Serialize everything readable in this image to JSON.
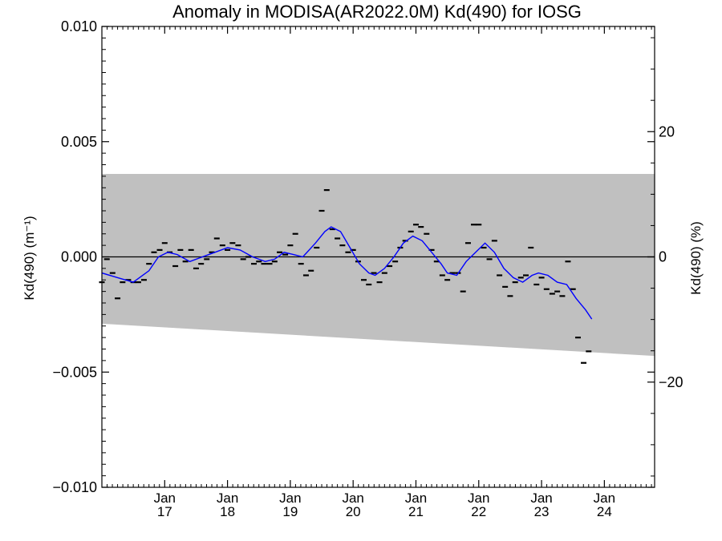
{
  "chart_data": {
    "type": "scatter",
    "title": "Anomaly in MODISA(AR2022.0M) Kd(490) for IOSG",
    "ylabel": "Kd(490) (m⁻¹)",
    "y2label": "Kd(490) (%)",
    "xlim": [
      2016.0,
      2024.8
    ],
    "ylim": [
      -0.01,
      0.01
    ],
    "y2lim": [
      -36.8,
      36.8
    ],
    "yticks": [
      "0.010",
      "0.005",
      "0.000",
      "−0.005",
      "−0.010"
    ],
    "yticks_values": [
      0.01,
      0.005,
      0.0,
      -0.005,
      -0.01
    ],
    "y2ticks": [
      "20",
      "0",
      "−20"
    ],
    "y2ticks_values": [
      20,
      0,
      -20
    ],
    "xticks": [
      {
        "month": "Jan",
        "year": "17",
        "x": 2017.0
      },
      {
        "month": "Jan",
        "year": "18",
        "x": 2018.0
      },
      {
        "month": "Jan",
        "year": "19",
        "x": 2019.0
      },
      {
        "month": "Jan",
        "year": "20",
        "x": 2020.0
      },
      {
        "month": "Jan",
        "year": "21",
        "x": 2021.0
      },
      {
        "month": "Jan",
        "year": "22",
        "x": 2022.0
      },
      {
        "month": "Jan",
        "year": "23",
        "x": 2023.0
      },
      {
        "month": "Jan",
        "year": "24",
        "x": 2024.0
      }
    ],
    "band": {
      "color": "#c0c0c0",
      "upper": [
        [
          2016.0,
          0.0036
        ],
        [
          2024.8,
          0.0036
        ]
      ],
      "lower": [
        [
          2016.0,
          -0.0029
        ],
        [
          2024.8,
          -0.0043
        ]
      ]
    },
    "zero_line": 0.0,
    "series": [
      {
        "role": "monthly-anomaly",
        "marker": "dash",
        "color": "#000000",
        "points": [
          [
            2016.0,
            -0.0011
          ],
          [
            2016.08,
            -0.0001
          ],
          [
            2016.17,
            -0.0007
          ],
          [
            2016.25,
            -0.0018
          ],
          [
            2016.33,
            -0.0011
          ],
          [
            2016.42,
            -0.001
          ],
          [
            2016.5,
            -0.0011
          ],
          [
            2016.58,
            -0.0011
          ],
          [
            2016.67,
            -0.001
          ],
          [
            2016.75,
            -0.0003
          ],
          [
            2016.83,
            0.0002
          ],
          [
            2016.92,
            0.0003
          ],
          [
            2017.0,
            0.0006
          ],
          [
            2017.08,
            0.0002
          ],
          [
            2017.17,
            -0.0004
          ],
          [
            2017.25,
            0.0003
          ],
          [
            2017.33,
            -0.0002
          ],
          [
            2017.42,
            0.0003
          ],
          [
            2017.5,
            -0.0005
          ],
          [
            2017.58,
            -0.0003
          ],
          [
            2017.67,
            -0.0001
          ],
          [
            2017.75,
            0.0002
          ],
          [
            2017.83,
            0.0008
          ],
          [
            2017.92,
            0.0005
          ],
          [
            2018.0,
            0.0003
          ],
          [
            2018.08,
            0.0006
          ],
          [
            2018.17,
            0.0005
          ],
          [
            2018.25,
            -0.0001
          ],
          [
            2018.33,
            0.0
          ],
          [
            2018.42,
            -0.0003
          ],
          [
            2018.5,
            -0.0002
          ],
          [
            2018.58,
            -0.0003
          ],
          [
            2018.67,
            -0.0003
          ],
          [
            2018.75,
            -0.0002
          ],
          [
            2018.83,
            0.0002
          ],
          [
            2018.92,
            0.0001
          ],
          [
            2019.0,
            0.0005
          ],
          [
            2019.08,
            0.001
          ],
          [
            2019.17,
            -0.0003
          ],
          [
            2019.25,
            -0.0008
          ],
          [
            2019.33,
            -0.0006
          ],
          [
            2019.42,
            0.0004
          ],
          [
            2019.5,
            0.002
          ],
          [
            2019.58,
            0.0029
          ],
          [
            2019.67,
            0.0012
          ],
          [
            2019.75,
            0.0008
          ],
          [
            2019.83,
            0.0005
          ],
          [
            2019.92,
            0.0002
          ],
          [
            2020.0,
            0.0003
          ],
          [
            2020.08,
            -0.0002
          ],
          [
            2020.17,
            -0.001
          ],
          [
            2020.25,
            -0.0012
          ],
          [
            2020.33,
            -0.0007
          ],
          [
            2020.42,
            -0.0011
          ],
          [
            2020.5,
            -0.0007
          ],
          [
            2020.58,
            -0.0004
          ],
          [
            2020.67,
            -0.0002
          ],
          [
            2020.75,
            0.0004
          ],
          [
            2020.83,
            0.0007
          ],
          [
            2020.92,
            0.0011
          ],
          [
            2021.0,
            0.0014
          ],
          [
            2021.08,
            0.0013
          ],
          [
            2021.17,
            0.001
          ],
          [
            2021.25,
            0.0003
          ],
          [
            2021.33,
            -0.0002
          ],
          [
            2021.42,
            -0.0008
          ],
          [
            2021.5,
            -0.001
          ],
          [
            2021.58,
            -0.0007
          ],
          [
            2021.67,
            -0.0007
          ],
          [
            2021.75,
            -0.0015
          ],
          [
            2021.83,
            0.0006
          ],
          [
            2021.92,
            0.0014
          ],
          [
            2022.0,
            0.0014
          ],
          [
            2022.08,
            0.0004
          ],
          [
            2022.17,
            -0.0001
          ],
          [
            2022.25,
            0.0007
          ],
          [
            2022.33,
            -0.0008
          ],
          [
            2022.42,
            -0.0013
          ],
          [
            2022.5,
            -0.0017
          ],
          [
            2022.58,
            -0.0011
          ],
          [
            2022.67,
            -0.0009
          ],
          [
            2022.75,
            -0.0008
          ],
          [
            2022.83,
            0.0004
          ],
          [
            2022.92,
            -0.0012
          ],
          [
            2023.0,
            -0.0009
          ],
          [
            2023.08,
            -0.0014
          ],
          [
            2023.17,
            -0.0016
          ],
          [
            2023.25,
            -0.0015
          ],
          [
            2023.33,
            -0.0017
          ],
          [
            2023.42,
            -0.0002
          ],
          [
            2023.5,
            -0.0014
          ],
          [
            2023.58,
            -0.0035
          ],
          [
            2023.67,
            -0.0046
          ],
          [
            2023.75,
            -0.0041
          ]
        ]
      },
      {
        "role": "running-mean",
        "marker": "line",
        "color": "#0000ff",
        "points": [
          [
            2016.0,
            -0.0007
          ],
          [
            2016.25,
            -0.0009
          ],
          [
            2016.5,
            -0.0011
          ],
          [
            2016.75,
            -0.0006
          ],
          [
            2016.9,
            0.0
          ],
          [
            2017.05,
            0.0002
          ],
          [
            2017.2,
            0.0001
          ],
          [
            2017.4,
            -0.0002
          ],
          [
            2017.6,
            0.0
          ],
          [
            2017.8,
            0.0002
          ],
          [
            2018.0,
            0.0004
          ],
          [
            2018.2,
            0.0003
          ],
          [
            2018.4,
            0.0
          ],
          [
            2018.6,
            -0.0002
          ],
          [
            2018.75,
            -0.0001
          ],
          [
            2018.9,
            0.0002
          ],
          [
            2019.05,
            0.0001
          ],
          [
            2019.2,
            0.0
          ],
          [
            2019.4,
            0.0006
          ],
          [
            2019.55,
            0.0011
          ],
          [
            2019.65,
            0.0013
          ],
          [
            2019.8,
            0.0011
          ],
          [
            2019.95,
            0.0004
          ],
          [
            2020.1,
            -0.0003
          ],
          [
            2020.25,
            -0.0007
          ],
          [
            2020.35,
            -0.0008
          ],
          [
            2020.5,
            -0.0005
          ],
          [
            2020.65,
            0.0
          ],
          [
            2020.8,
            0.0006
          ],
          [
            2020.95,
            0.0009
          ],
          [
            2021.1,
            0.0007
          ],
          [
            2021.25,
            0.0002
          ],
          [
            2021.4,
            -0.0003
          ],
          [
            2021.5,
            -0.0007
          ],
          [
            2021.65,
            -0.0008
          ],
          [
            2021.8,
            -0.0002
          ],
          [
            2021.95,
            0.0002
          ],
          [
            2022.1,
            0.0006
          ],
          [
            2022.25,
            0.0002
          ],
          [
            2022.4,
            -0.0005
          ],
          [
            2022.55,
            -0.0009
          ],
          [
            2022.7,
            -0.0011
          ],
          [
            2022.85,
            -0.0008
          ],
          [
            2022.95,
            -0.0007
          ],
          [
            2023.1,
            -0.0008
          ],
          [
            2023.25,
            -0.0011
          ],
          [
            2023.4,
            -0.0012
          ],
          [
            2023.55,
            -0.0018
          ],
          [
            2023.7,
            -0.0023
          ],
          [
            2023.8,
            -0.0027
          ]
        ]
      }
    ],
    "grid": false,
    "legend": "none"
  }
}
